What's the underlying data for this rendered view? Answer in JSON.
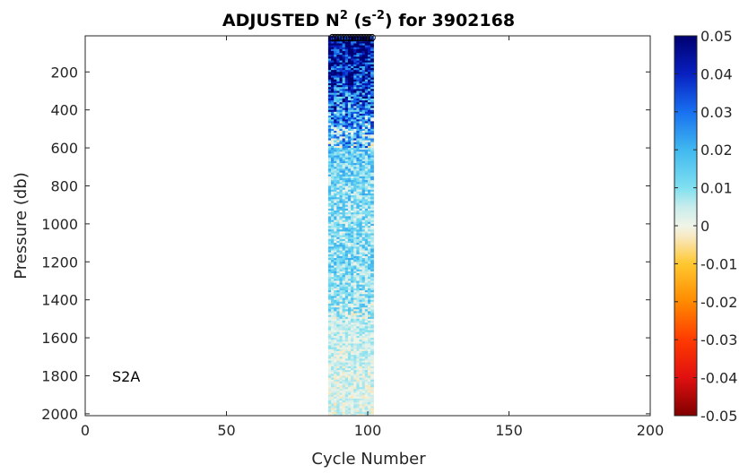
{
  "chart_data": {
    "type": "heatmap",
    "title": {
      "prefix": "ADJUSTED N",
      "sup1": "2",
      "mid": " (s",
      "sup2": "-2",
      "suffix": ") for 3902168"
    },
    "xlabel": "Cycle Number",
    "ylabel": "Pressure (db)",
    "xlim": [
      0,
      200
    ],
    "ylim": [
      2010,
      10
    ],
    "y_reversed": true,
    "x_ticks": [
      0,
      50,
      100,
      150,
      200
    ],
    "x_tick_labels": [
      "0",
      "50",
      "100",
      "150",
      "200"
    ],
    "y_ticks": [
      200,
      400,
      600,
      800,
      1000,
      1200,
      1400,
      1600,
      1800,
      2000
    ],
    "y_tick_labels": [
      "200",
      "400",
      "600",
      "800",
      "1000",
      "1200",
      "1400",
      "1600",
      "1800",
      "2000"
    ],
    "annotation": "S2A",
    "data_region": {
      "cycle_start": 86,
      "cycle_end": 102,
      "pressure_top": 10,
      "pressure_bottom": 2005
    },
    "marker_cycles": [
      87,
      88,
      89,
      90,
      91,
      92,
      93,
      94,
      95,
      96,
      97,
      98,
      99,
      100,
      101
    ],
    "marker_pressure": 10,
    "depth_profile": [
      {
        "p": 10,
        "v": 0.05
      },
      {
        "p": 150,
        "v": 0.042
      },
      {
        "p": 300,
        "v": 0.035
      },
      {
        "p": 450,
        "v": 0.022
      },
      {
        "p": 600,
        "v": 0.015
      },
      {
        "p": 800,
        "v": 0.012
      },
      {
        "p": 1000,
        "v": 0.01
      },
      {
        "p": 1200,
        "v": 0.011
      },
      {
        "p": 1400,
        "v": 0.009
      },
      {
        "p": 1500,
        "v": 0.006
      },
      {
        "p": 1600,
        "v": 0.004
      },
      {
        "p": 1800,
        "v": 0.003
      },
      {
        "p": 2005,
        "v": 0.002
      }
    ],
    "colorbar": {
      "clim": [
        -0.05,
        0.05
      ],
      "ticks": [
        0.05,
        0.04,
        0.03,
        0.02,
        0.01,
        0,
        -0.01,
        -0.02,
        -0.03,
        -0.04,
        -0.05
      ],
      "tick_labels": [
        "0.05",
        "0.04",
        "0.03",
        "0.02",
        "0.01",
        "0",
        "-0.01",
        "-0.02",
        "-0.03",
        "-0.04",
        "-0.05"
      ],
      "colormap_stops": [
        {
          "v": -0.05,
          "color": "#800000"
        },
        {
          "v": -0.04,
          "color": "#e01010"
        },
        {
          "v": -0.03,
          "color": "#ff3a00"
        },
        {
          "v": -0.02,
          "color": "#ff8a00"
        },
        {
          "v": -0.01,
          "color": "#ffc830"
        },
        {
          "v": -0.003,
          "color": "#f8e8c0"
        },
        {
          "v": 0.0,
          "color": "#f0f4e8"
        },
        {
          "v": 0.005,
          "color": "#c8ecec"
        },
        {
          "v": 0.01,
          "color": "#80e0f0"
        },
        {
          "v": 0.02,
          "color": "#40b8f0"
        },
        {
          "v": 0.03,
          "color": "#1870f0"
        },
        {
          "v": 0.04,
          "color": "#0820c0"
        },
        {
          "v": 0.05,
          "color": "#000070"
        }
      ]
    }
  }
}
